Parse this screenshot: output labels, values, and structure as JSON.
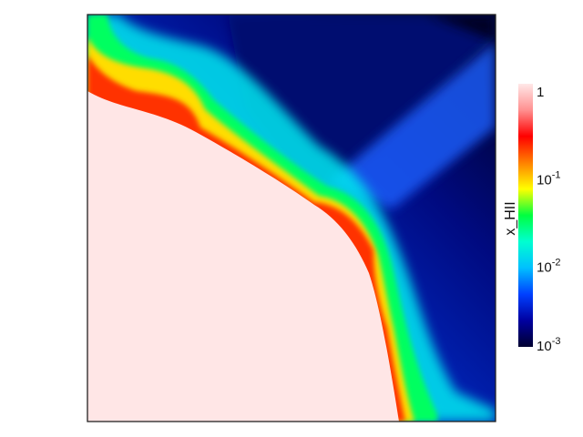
{
  "chart_data": {
    "type": "heatmap",
    "title": "",
    "xlabel": "",
    "ylabel": "",
    "description_of_field": "ionization front: fully ionized quarter-disk at lower-left, sharp red/yellow/green front, blue-to-black neutral region toward upper-right with shadowed wedge",
    "colorbar": {
      "label": "x_HII",
      "scale": "log",
      "min": 0.001,
      "max": 1,
      "colors": [
        "#000030",
        "#0000a0",
        "#0040ff",
        "#00c0ff",
        "#00ffd0",
        "#00ff40",
        "#ffff00",
        "#ff8000",
        "#ff0000",
        "#ff9090",
        "#ffe8e8"
      ],
      "ticks": [
        {
          "value": 1,
          "base": "1",
          "exp": ""
        },
        {
          "value": 0.1,
          "base": "10",
          "exp": "-1"
        },
        {
          "value": 0.01,
          "base": "10",
          "exp": "-2"
        },
        {
          "value": 0.001,
          "base": "10",
          "exp": "-3"
        }
      ]
    }
  }
}
